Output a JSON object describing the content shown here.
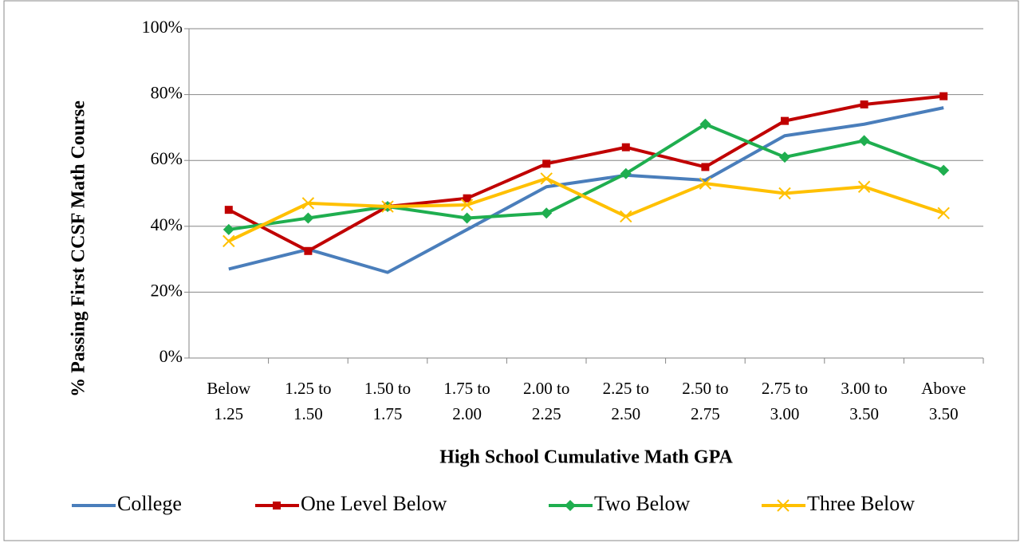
{
  "chart_data": {
    "type": "line",
    "x_label": "High School Cumulative Math GPA",
    "y_label": "% Passing First CCSF Math Course",
    "categories": [
      "Below\n1.25",
      "1.25 to\n1.50",
      "1.50 to\n1.75",
      "1.75 to\n2.00",
      "2.00 to\n2.25",
      "2.25 to\n2.50",
      "2.50 to\n2.75",
      "2.75 to\n3.00",
      "3.00 to\n3.50",
      "Above\n3.50"
    ],
    "series": [
      {
        "name": "College",
        "color": "#4a7ebb",
        "marker": "none",
        "values": [
          27,
          33,
          26,
          39,
          52,
          55.5,
          54,
          67.5,
          71,
          76
        ]
      },
      {
        "name": "One Level Below",
        "color": "#c00000",
        "marker": "square",
        "values": [
          45,
          32.5,
          46,
          48.5,
          59,
          64,
          58,
          72,
          77,
          79.5
        ]
      },
      {
        "name": "Two Below",
        "color": "#1fae4f",
        "marker": "diamond",
        "values": [
          39,
          42.5,
          46,
          42.5,
          44,
          56,
          71,
          61,
          66,
          57
        ]
      },
      {
        "name": "Three Below",
        "color": "#ffc000",
        "marker": "x",
        "values": [
          35.5,
          47,
          46,
          46.5,
          54.5,
          43,
          53,
          50,
          52,
          44
        ]
      }
    ],
    "ylim": [
      0,
      100
    ],
    "yticks": [
      {
        "value": 0,
        "label": "0%"
      },
      {
        "value": 20,
        "label": "20%"
      },
      {
        "value": 40,
        "label": "40%"
      },
      {
        "value": 60,
        "label": "60%"
      },
      {
        "value": 80,
        "label": "80%"
      },
      {
        "value": 100,
        "label": "100%"
      }
    ],
    "grid": true,
    "legend": "bottom"
  }
}
